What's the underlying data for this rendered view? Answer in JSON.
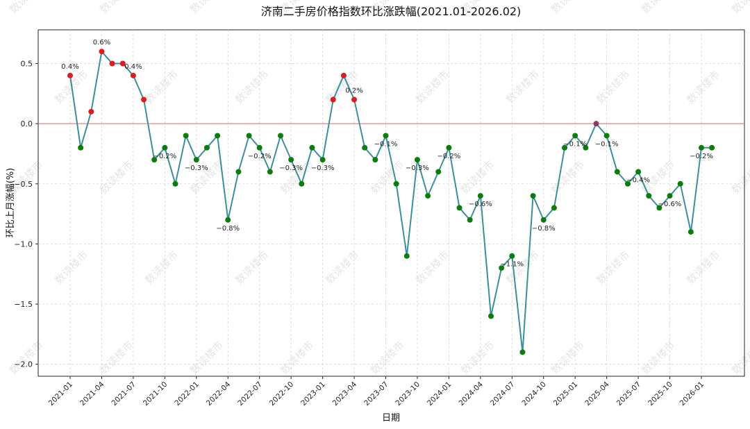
{
  "chart_data": {
    "type": "line",
    "title": "济南二手房价格指数环比涨跌幅(2021.01-2026.02)",
    "xlabel": "日期",
    "ylabel": "环比上月涨幅(%)",
    "ylim": [
      -2.1,
      0.78
    ],
    "yticks": [
      0.5,
      0.0,
      -0.5,
      -1.0,
      -1.5,
      -2.0
    ],
    "ytick_labels": [
      "0.5",
      "0.0",
      "−0.5",
      "−1.0",
      "−1.5",
      "−2.0"
    ],
    "xtick_labels": [
      "2021-01",
      "2021-04",
      "2021-07",
      "2021-10",
      "2022-01",
      "2022-04",
      "2022-07",
      "2022-10",
      "2023-01",
      "2023-04",
      "2023-07",
      "2023-10",
      "2024-01",
      "2024-04",
      "2024-07",
      "2024-10",
      "2025-01",
      "2025-04",
      "2025-07",
      "2025-10",
      "2026-01"
    ],
    "grid": true,
    "reference_line": 0.0,
    "colors": {
      "line": "#3a8f9e",
      "positive": "#e31a1c",
      "negative": "#0b7d0b",
      "zero": "#8b3a62",
      "reference": "#e06666"
    },
    "watermark": "数读楼市",
    "series": [
      {
        "x": [
          "2021-01",
          "2021-02",
          "2021-03",
          "2021-04",
          "2021-05",
          "2021-06",
          "2021-07",
          "2021-08",
          "2021-09",
          "2021-10",
          "2021-11",
          "2021-12",
          "2022-01",
          "2022-02",
          "2022-03",
          "2022-04",
          "2022-05",
          "2022-06",
          "2022-07",
          "2022-08",
          "2022-09",
          "2022-10",
          "2022-11",
          "2022-12",
          "2023-01",
          "2023-02",
          "2023-03",
          "2023-04",
          "2023-05",
          "2023-06",
          "2023-07",
          "2023-08",
          "2023-09",
          "2023-10",
          "2023-11",
          "2023-12",
          "2024-01",
          "2024-02",
          "2024-03",
          "2024-04",
          "2024-05",
          "2024-06",
          "2024-07",
          "2024-08",
          "2024-09",
          "2024-10",
          "2024-11",
          "2024-12",
          "2025-01",
          "2025-02",
          "2025-03",
          "2025-04",
          "2025-05",
          "2025-06",
          "2025-07",
          "2025-08",
          "2025-09",
          "2025-10",
          "2025-11",
          "2025-12",
          "2026-01",
          "2026-02"
        ],
        "values": [
          0.4,
          -0.2,
          0.1,
          0.6,
          0.5,
          0.5,
          0.4,
          0.2,
          -0.3,
          -0.2,
          -0.5,
          -0.1,
          -0.3,
          -0.2,
          -0.1,
          -0.8,
          -0.4,
          -0.1,
          -0.2,
          -0.4,
          -0.1,
          -0.3,
          -0.5,
          -0.2,
          -0.3,
          0.2,
          0.4,
          0.2,
          -0.2,
          -0.3,
          -0.1,
          -0.5,
          -1.1,
          -0.3,
          -0.6,
          -0.4,
          -0.2,
          -0.7,
          -0.8,
          -0.6,
          -1.6,
          -1.2,
          -1.1,
          -1.9,
          -0.6,
          -0.8,
          -0.7,
          -0.2,
          -0.1,
          -0.2,
          0.0,
          -0.1,
          -0.4,
          -0.5,
          -0.4,
          -0.6,
          -0.7,
          -0.6,
          -0.5,
          -0.9,
          -0.2,
          -0.2
        ]
      }
    ],
    "annotations": [
      {
        "index": 0,
        "text": "0.4%"
      },
      {
        "index": 3,
        "text": "0.6%"
      },
      {
        "index": 6,
        "text": "0.4%"
      },
      {
        "index": 9,
        "text": "−0.2%"
      },
      {
        "index": 12,
        "text": "−0.3%"
      },
      {
        "index": 15,
        "text": "−0.8%"
      },
      {
        "index": 18,
        "text": "−0.2%"
      },
      {
        "index": 21,
        "text": "−0.3%"
      },
      {
        "index": 24,
        "text": "−0.3%"
      },
      {
        "index": 27,
        "text": "0.2%"
      },
      {
        "index": 30,
        "text": "−0.1%"
      },
      {
        "index": 33,
        "text": "−0.3%"
      },
      {
        "index": 36,
        "text": "−0.2%"
      },
      {
        "index": 39,
        "text": "−0.6%"
      },
      {
        "index": 42,
        "text": "−1.1%"
      },
      {
        "index": 45,
        "text": "−0.8%"
      },
      {
        "index": 48,
        "text": "−0.1%"
      },
      {
        "index": 51,
        "text": "−0.1%"
      },
      {
        "index": 54,
        "text": "−0.4%"
      },
      {
        "index": 57,
        "text": "−0.6%"
      },
      {
        "index": 60,
        "text": "−0.2%"
      }
    ]
  }
}
